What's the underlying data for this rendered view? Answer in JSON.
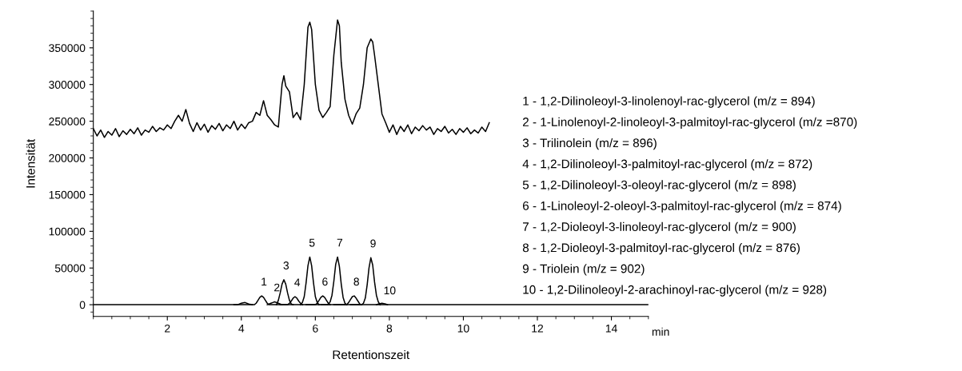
{
  "chart_data": {
    "type": "line",
    "xlabel": "Retentionszeit",
    "ylabel": "Intensität",
    "xlim": [
      0,
      15
    ],
    "ylim": [
      -16000,
      400000
    ],
    "xticks": [
      2,
      4,
      6,
      8,
      10,
      12,
      14
    ],
    "yticks": [
      0,
      50000,
      100000,
      150000,
      200000,
      250000,
      300000,
      350000
    ],
    "grid": false,
    "marker": "none",
    "line_style": "solid",
    "series": [
      {
        "color": "#000000",
        "x": [
          0.0,
          0.1,
          0.2,
          0.3,
          0.4,
          0.5,
          0.6,
          0.7,
          0.8,
          0.9,
          1.0,
          1.1,
          1.2,
          1.3,
          1.4,
          1.5,
          1.6,
          1.7,
          1.8,
          1.9,
          2.0,
          2.1,
          2.2,
          2.3,
          2.4,
          2.5,
          2.6,
          2.7,
          2.8,
          2.9,
          3.0,
          3.1,
          3.2,
          3.3,
          3.4,
          3.5,
          3.6,
          3.7,
          3.8,
          3.9,
          4.0,
          4.1,
          4.2,
          4.3,
          4.4,
          4.5,
          4.6,
          4.7,
          4.8,
          4.9,
          5.0,
          5.1,
          5.15,
          5.2,
          5.3,
          5.4,
          5.5,
          5.6,
          5.7,
          5.8,
          5.85,
          5.9,
          6.0,
          6.1,
          6.2,
          6.3,
          6.4,
          6.5,
          6.6,
          6.65,
          6.7,
          6.8,
          6.9,
          7.0,
          7.1,
          7.2,
          7.3,
          7.4,
          7.5,
          7.55,
          7.6,
          7.7,
          7.8,
          7.9,
          8.0,
          8.1,
          8.2,
          8.3,
          8.4,
          8.5,
          8.6,
          8.7,
          8.8,
          8.9,
          9.0,
          9.1,
          9.2,
          9.3,
          9.4,
          9.5,
          9.6,
          9.7,
          9.8,
          9.9,
          10.0,
          10.1,
          10.2,
          10.3,
          10.4,
          10.5,
          10.6,
          10.7
        ],
        "values": [
          240000,
          230000,
          238000,
          228000,
          236000,
          231000,
          240000,
          229000,
          237000,
          232000,
          239000,
          233000,
          241000,
          231000,
          238000,
          235000,
          243000,
          236000,
          241000,
          238000,
          245000,
          240000,
          250000,
          258000,
          250000,
          266000,
          247000,
          236000,
          248000,
          238000,
          246000,
          235000,
          244000,
          239000,
          247000,
          237000,
          245000,
          240000,
          250000,
          238000,
          246000,
          240000,
          248000,
          250000,
          262000,
          258000,
          278000,
          258000,
          252000,
          245000,
          242000,
          300000,
          312000,
          298000,
          290000,
          255000,
          262000,
          252000,
          300000,
          378000,
          385000,
          375000,
          300000,
          265000,
          255000,
          262000,
          270000,
          340000,
          388000,
          380000,
          330000,
          280000,
          258000,
          246000,
          260000,
          268000,
          300000,
          350000,
          362000,
          358000,
          340000,
          300000,
          260000,
          248000,
          235000,
          245000,
          232000,
          243000,
          236000,
          245000,
          233000,
          242000,
          237000,
          244000,
          238000,
          242000,
          232000,
          240000,
          236000,
          243000,
          234000,
          239000,
          232000,
          240000,
          235000,
          241000,
          233000,
          238000,
          234000,
          242000,
          236000,
          248000
        ]
      },
      {
        "color": "#000000",
        "x": [
          0,
          1,
          2,
          3,
          4.35,
          4.4,
          4.45,
          4.5,
          4.55,
          4.6,
          4.65,
          4.7,
          4.75,
          5.5,
          6.5,
          7.5,
          8.1,
          9,
          10,
          11,
          12,
          13,
          14,
          15
        ],
        "values": [
          0,
          0,
          0,
          0,
          0,
          2000,
          6000,
          10000,
          12000,
          10000,
          6000,
          2000,
          0,
          0,
          0,
          0,
          0,
          0,
          0,
          0,
          0,
          0,
          0,
          0
        ]
      },
      {
        "color": "#000000",
        "x": [
          3.8,
          3.9,
          4.0,
          4.1,
          4.2,
          4.3
        ],
        "values": [
          0,
          0,
          2000,
          3000,
          1000,
          0
        ]
      },
      {
        "color": "#000000",
        "x": [
          4.7,
          4.75,
          4.8,
          4.85,
          4.9,
          4.95,
          5.0,
          5.05,
          5.1
        ],
        "values": [
          0,
          1000,
          2000,
          3000,
          4000,
          3000,
          2000,
          1000,
          0
        ]
      },
      {
        "color": "#000000",
        "x": [
          4.95,
          5.0,
          5.05,
          5.1,
          5.15,
          5.2,
          5.25,
          5.3,
          5.35,
          5.4
        ],
        "values": [
          0,
          6000,
          16000,
          28000,
          34000,
          28000,
          16000,
          6000,
          1000,
          0
        ]
      },
      {
        "color": "#000000",
        "x": [
          5.05,
          5.1,
          5.15,
          5.2,
          5.25,
          5.3,
          5.35,
          5.4,
          5.45,
          5.5,
          5.55,
          5.6,
          5.65
        ],
        "values": [
          0,
          0,
          0,
          0,
          0,
          2000,
          5000,
          9000,
          11000,
          9000,
          5000,
          2000,
          0
        ]
      },
      {
        "color": "#000000",
        "x": [
          5.6,
          5.65,
          5.7,
          5.75,
          5.8,
          5.85,
          5.9,
          5.95,
          6.0,
          6.05,
          6.1
        ],
        "values": [
          0,
          3000,
          11000,
          30000,
          53000,
          65000,
          53000,
          30000,
          11000,
          3000,
          0
        ]
      },
      {
        "color": "#000000",
        "x": [
          5.75,
          5.8,
          5.85,
          5.9,
          5.95,
          6.0,
          6.05,
          6.1,
          6.15,
          6.2,
          6.25,
          6.3,
          6.35,
          6.4
        ],
        "values": [
          0,
          0,
          0,
          0,
          0,
          0,
          2000,
          6000,
          10000,
          12000,
          10000,
          6000,
          2000,
          0
        ]
      },
      {
        "color": "#000000",
        "x": [
          6.15,
          6.2,
          6.25,
          6.3,
          6.35,
          6.4,
          6.45,
          6.5,
          6.55,
          6.6,
          6.65,
          6.7,
          6.75,
          6.8,
          6.85
        ],
        "values": [
          0,
          0,
          0,
          0,
          0,
          4000,
          13000,
          32000,
          55000,
          65000,
          52000,
          28000,
          10000,
          2000,
          0
        ]
      },
      {
        "color": "#000000",
        "x": [
          6.5,
          6.55,
          6.6,
          6.65,
          6.7,
          6.75,
          6.8,
          6.85,
          6.9,
          6.95,
          7.0,
          7.05,
          7.1,
          7.15,
          7.2,
          7.25
        ],
        "values": [
          0,
          0,
          0,
          0,
          0,
          0,
          0,
          0,
          3000,
          7000,
          11000,
          12000,
          9000,
          5000,
          1000,
          0
        ]
      },
      {
        "color": "#000000",
        "x": [
          6.95,
          7.0,
          7.05,
          7.1,
          7.15,
          7.2,
          7.25,
          7.3,
          7.35,
          7.4,
          7.45,
          7.5,
          7.55,
          7.6,
          7.65,
          7.7,
          7.75
        ],
        "values": [
          0,
          0,
          0,
          0,
          0,
          0,
          0,
          2000,
          9000,
          27000,
          50000,
          64000,
          54000,
          31000,
          13000,
          4000,
          0
        ]
      },
      {
        "color": "#000000",
        "x": [
          7.65,
          7.7,
          7.8,
          7.9,
          7.95
        ],
        "values": [
          0,
          1000,
          2000,
          1000,
          0
        ]
      }
    ],
    "annotations": [
      {
        "text": "1",
        "x": 4.55,
        "y": 12000
      },
      {
        "text": "2",
        "x": 4.9,
        "y": 4000
      },
      {
        "text": "3",
        "x": 5.15,
        "y": 34000
      },
      {
        "text": "4",
        "x": 5.45,
        "y": 11000
      },
      {
        "text": "5",
        "x": 5.85,
        "y": 65000
      },
      {
        "text": "6",
        "x": 6.2,
        "y": 12000
      },
      {
        "text": "7",
        "x": 6.6,
        "y": 65000
      },
      {
        "text": "8",
        "x": 7.05,
        "y": 12000
      },
      {
        "text": "9",
        "x": 7.5,
        "y": 64000
      },
      {
        "text": "10",
        "x": 7.95,
        "y": 0
      },
      "min",
      "1 - 1,2-Dilinoleoyl-3-linolenoyl-rac-glycerol (m/z = 894)",
      "2 - 1-Linolenoyl-2-linoleoyl-3-palmitoyl-rac-glycerol (m/z =870)",
      "3 - Trilinolein (m/z = 896)",
      "4 - 1,2-Dilinoleoyl-3-palmitoyl-rac-glycerol (m/z = 872)",
      "5 - 1,2-Dilinoleoyl-3-oleoyl-rac-glycerol (m/z = 898)",
      "6 - 1-Linoleoyl-2-oleoyl-3-palmitoyl-rac-glycerol (m/z = 874)",
      "7 - 1,2-Dioleoyl-3-linoleoyl-rac-glycerol (m/z = 900)",
      "8 - 1,2-Dioleoyl-3-palmitoyl-rac-glycerol (m/z = 876)",
      "9 - Triolein (m/z = 902)",
      "10 - 1,2-Dilinoleoyl-2-arachinoyl-rac-glycerol (m/z = 928)"
    ]
  }
}
